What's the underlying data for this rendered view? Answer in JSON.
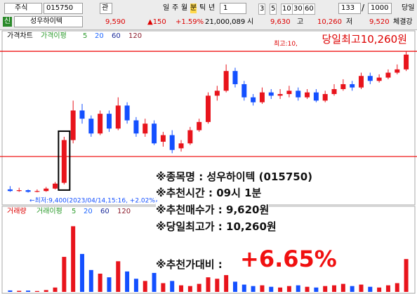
{
  "toolbar": {
    "market": "주식",
    "code": "015750",
    "menu": "관",
    "periods": [
      "일",
      "주",
      "월",
      "분",
      "틱",
      "년"
    ],
    "unit": "1",
    "intervals": [
      "3",
      "5",
      "10",
      "30",
      "60"
    ],
    "count": "133",
    "slash": "/",
    "max": "1000",
    "today": "당일"
  },
  "quote": {
    "badge": "신",
    "name": "성우하이텍",
    "price": "9,590",
    "change": "▲150",
    "rate": "+1.59%",
    "volume": "21,000,089",
    "open_label": "시",
    "open": "9,630",
    "high_label": "고",
    "high": "10,260",
    "low_label": "저",
    "low": "9,520",
    "tab": "체결강"
  },
  "chart_data": {
    "type": "candlestick",
    "title": "가격차트",
    "ma_label": "가격이평",
    "ma_periods": [
      {
        "name": "5",
        "color": "#2a9a2a"
      },
      {
        "name": "20",
        "color": "#1e66ff"
      },
      {
        "name": "60",
        "color": "#1a2a9a"
      },
      {
        "name": "120",
        "color": "#8a1a2a"
      }
    ],
    "high_marker": "최고:10,",
    "high_note": "당일최고10,260원",
    "low_note": "←최저:9,400(2023/04/14,15:16, +2.02%)",
    "open": [
      9420,
      9410,
      9415,
      9405,
      9410,
      9425,
      9460,
      9720,
      9900,
      9850,
      9760,
      9880,
      9790,
      9930,
      9840,
      9760,
      9820,
      9710,
      9750,
      9670,
      9700,
      9780,
      9830,
      9990,
      10020,
      10140,
      10060,
      9980,
      9950,
      10010,
      9990,
      10000,
      10020,
      9980,
      10010,
      9960,
      10000,
      10030,
      10060,
      10040,
      10110,
      10080,
      10100,
      10130,
      10150
    ],
    "high": [
      9440,
      9430,
      9420,
      9420,
      9435,
      9465,
      9740,
      9960,
      9940,
      9870,
      9900,
      9900,
      9980,
      9950,
      9860,
      9850,
      9840,
      9770,
      9780,
      9720,
      9800,
      9850,
      10010,
      10050,
      10180,
      10160,
      10080,
      10000,
      10040,
      10030,
      10030,
      10050,
      10040,
      10030,
      10030,
      10020,
      10060,
      10090,
      10080,
      10130,
      10130,
      10120,
      10150,
      10180,
      10260
    ],
    "low": [
      9405,
      9405,
      9400,
      9402,
      9405,
      9420,
      9450,
      9700,
      9820,
      9740,
      9750,
      9770,
      9780,
      9820,
      9740,
      9740,
      9690,
      9680,
      9640,
      9650,
      9690,
      9770,
      9820,
      9960,
      10010,
      10040,
      9960,
      9930,
      9940,
      9970,
      9970,
      9980,
      9960,
      9970,
      9950,
      9950,
      9990,
      10020,
      10020,
      10030,
      10060,
      10070,
      10090,
      10120,
      10140
    ],
    "close": [
      9410,
      9415,
      9405,
      9410,
      9425,
      9455,
      9720,
      9900,
      9850,
      9760,
      9880,
      9790,
      9930,
      9840,
      9760,
      9820,
      9700,
      9750,
      9660,
      9700,
      9780,
      9830,
      9990,
      10020,
      10140,
      10060,
      9980,
      9950,
      10010,
      9990,
      10000,
      10020,
      9980,
      10010,
      9960,
      10000,
      10030,
      10060,
      10040,
      10110,
      10080,
      10100,
      10130,
      10150,
      10240
    ],
    "ylim": [
      9330,
      10380
    ],
    "hlines": [
      10260,
      9620
    ],
    "up_color": "#e8141c",
    "down_color": "#1450ff",
    "volume_title": "거래량",
    "volume_ma_label": "거래이평",
    "volume": [
      20000,
      15000,
      18000,
      12000,
      25000,
      60000,
      480000,
      900000,
      520000,
      300000,
      250000,
      200000,
      420000,
      280000,
      180000,
      150000,
      260000,
      120000,
      150000,
      90000,
      80000,
      110000,
      200000,
      180000,
      230000,
      140000,
      100000,
      80000,
      90000,
      70000,
      60000,
      80000,
      90000,
      70000,
      60000,
      80000,
      90000,
      110000,
      80000,
      100000,
      70000,
      60000,
      90000,
      120000,
      450000
    ],
    "vlim": [
      0,
      1000000
    ]
  },
  "overlay": {
    "lines": [
      "※종목명 : 성우하이텍 (015750)",
      "※추천시간 : 09시 1분",
      "※추천매수가 : 9,620원",
      "※당일최고가 : 10,260원",
      "※추천가대비 :"
    ],
    "highlight": "+6.65%"
  }
}
